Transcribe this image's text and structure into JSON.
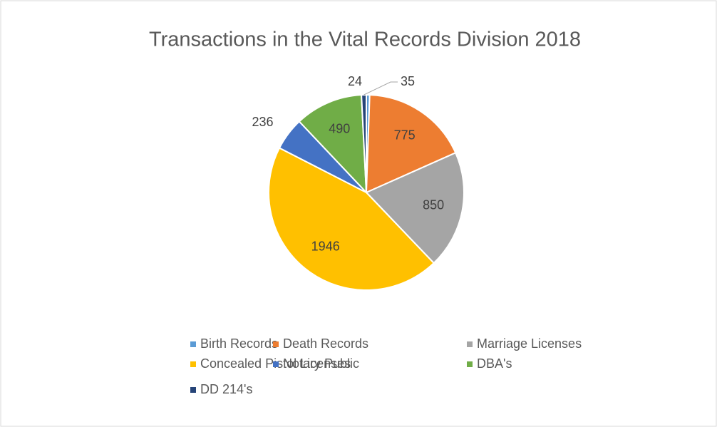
{
  "chart_data": {
    "type": "pie",
    "title": "Transactions in the Vital Records Division 2018",
    "categories": [
      "Birth Records",
      "Death Records",
      "Marriage Licenses",
      "Concealed Pistol Licenses",
      "Notary Public",
      "DBA's",
      "DD 214's"
    ],
    "values": [
      24,
      775,
      850,
      1946,
      236,
      490,
      35
    ],
    "colors": [
      "#5b9bd5",
      "#ed7d31",
      "#a5a5a5",
      "#ffc000",
      "#4472c4",
      "#70ad47",
      "#264478"
    ],
    "legend": "bottom"
  }
}
